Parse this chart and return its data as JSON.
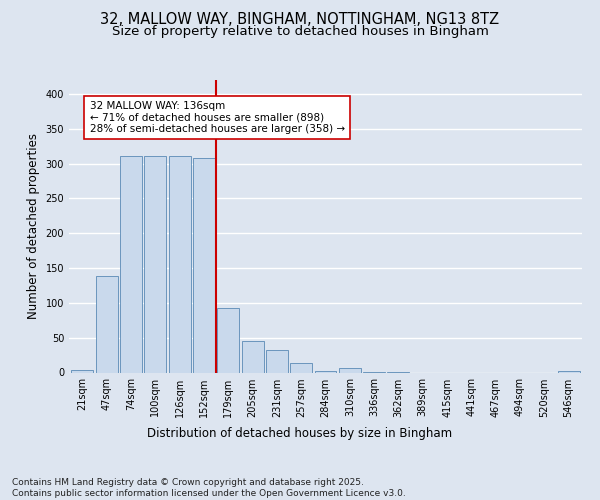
{
  "title1": "32, MALLOW WAY, BINGHAM, NOTTINGHAM, NG13 8TZ",
  "title2": "Size of property relative to detached houses in Bingham",
  "xlabel": "Distribution of detached houses by size in Bingham",
  "ylabel": "Number of detached properties",
  "categories": [
    "21sqm",
    "47sqm",
    "74sqm",
    "100sqm",
    "126sqm",
    "152sqm",
    "179sqm",
    "205sqm",
    "231sqm",
    "257sqm",
    "284sqm",
    "310sqm",
    "336sqm",
    "362sqm",
    "389sqm",
    "415sqm",
    "441sqm",
    "467sqm",
    "494sqm",
    "520sqm",
    "546sqm"
  ],
  "values": [
    3,
    138,
    311,
    311,
    311,
    308,
    93,
    45,
    33,
    14,
    2,
    6,
    1,
    1,
    0,
    0,
    0,
    0,
    0,
    0,
    2
  ],
  "bar_color": "#c9d9ec",
  "bar_edge_color": "#5a8ab5",
  "vline_x_index": 5.5,
  "vline_color": "#cc0000",
  "annotation_text": "32 MALLOW WAY: 136sqm\n← 71% of detached houses are smaller (898)\n28% of semi-detached houses are larger (358) →",
  "annotation_box_color": "#ffffff",
  "annotation_box_edge": "#cc0000",
  "footnote": "Contains HM Land Registry data © Crown copyright and database right 2025.\nContains public sector information licensed under the Open Government Licence v3.0.",
  "background_color": "#dde5f0",
  "plot_bg_color": "#dde5f0",
  "ylim": [
    0,
    420
  ],
  "yticks": [
    0,
    50,
    100,
    150,
    200,
    250,
    300,
    350,
    400
  ],
  "grid_color": "#ffffff",
  "title_fontsize": 10.5,
  "subtitle_fontsize": 9.5,
  "axis_label_fontsize": 8.5,
  "tick_fontsize": 7,
  "annotation_fontsize": 7.5,
  "footnote_fontsize": 6.5
}
